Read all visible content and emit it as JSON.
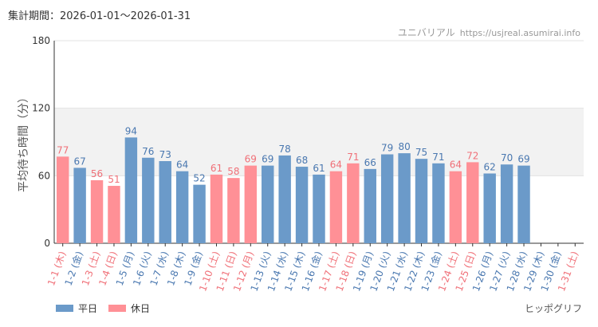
{
  "header": {
    "period_label": "集計期間：",
    "period_value": "2026-01-01～2026-01-31",
    "source_name": "ユニバリアル",
    "source_url": "https://usjreal.asumirai.info"
  },
  "legend": {
    "weekday": {
      "label": "平日",
      "color": "#6b9ac9"
    },
    "holiday": {
      "label": "休日",
      "color": "#ff9096"
    }
  },
  "credit": "ヒッポグリフ",
  "colors": {
    "weekday_text": "#4a78b0",
    "holiday_text": "#f07078",
    "band": "#f2f2f2",
    "grid": "#e3e3e3",
    "axis": "#333333"
  },
  "chart_data": {
    "type": "bar",
    "title": "",
    "xlabel": "",
    "ylabel": "平均待ち時間（分）",
    "ylim": [
      0,
      180
    ],
    "yticks": [
      0,
      60,
      120,
      180
    ],
    "shaded_band": [
      60,
      120
    ],
    "categories": [
      "1-1 (木)",
      "1-2 (金)",
      "1-3 (土)",
      "1-4 (日)",
      "1-5 (月)",
      "1-6 (火)",
      "1-7 (水)",
      "1-8 (木)",
      "1-9 (金)",
      "1-10 (土)",
      "1-11 (日)",
      "1-12 (月)",
      "1-13 (火)",
      "1-14 (水)",
      "1-15 (木)",
      "1-16 (金)",
      "1-17 (土)",
      "1-18 (日)",
      "1-19 (月)",
      "1-20 (火)",
      "1-21 (水)",
      "1-22 (木)",
      "1-23 (金)",
      "1-24 (土)",
      "1-25 (日)",
      "1-26 (月)",
      "1-27 (火)",
      "1-28 (水)",
      "1-29 (木)",
      "1-30 (金)",
      "1-31 (土)"
    ],
    "day_type": [
      "holiday",
      "weekday",
      "holiday",
      "holiday",
      "weekday",
      "weekday",
      "weekday",
      "weekday",
      "weekday",
      "holiday",
      "holiday",
      "holiday",
      "weekday",
      "weekday",
      "weekday",
      "weekday",
      "holiday",
      "holiday",
      "weekday",
      "weekday",
      "weekday",
      "weekday",
      "weekday",
      "holiday",
      "holiday",
      "weekday",
      "weekday",
      "weekday",
      "weekday",
      "weekday",
      "holiday"
    ],
    "values": [
      77,
      67,
      56,
      51,
      94,
      76,
      73,
      64,
      52,
      61,
      58,
      69,
      69,
      78,
      68,
      61,
      64,
      71,
      66,
      79,
      80,
      75,
      71,
      64,
      72,
      62,
      70,
      69,
      null,
      null,
      null
    ],
    "series": [
      {
        "name": "平日",
        "values": [
          null,
          67,
          null,
          null,
          94,
          76,
          73,
          64,
          52,
          null,
          null,
          null,
          69,
          78,
          68,
          61,
          null,
          null,
          66,
          79,
          80,
          75,
          71,
          null,
          null,
          62,
          70,
          69,
          null,
          null,
          null
        ]
      },
      {
        "name": "休日",
        "values": [
          77,
          null,
          56,
          51,
          null,
          null,
          null,
          null,
          null,
          61,
          58,
          69,
          null,
          null,
          null,
          null,
          64,
          71,
          null,
          null,
          null,
          null,
          null,
          64,
          72,
          null,
          null,
          null,
          null,
          null,
          null
        ]
      }
    ]
  }
}
